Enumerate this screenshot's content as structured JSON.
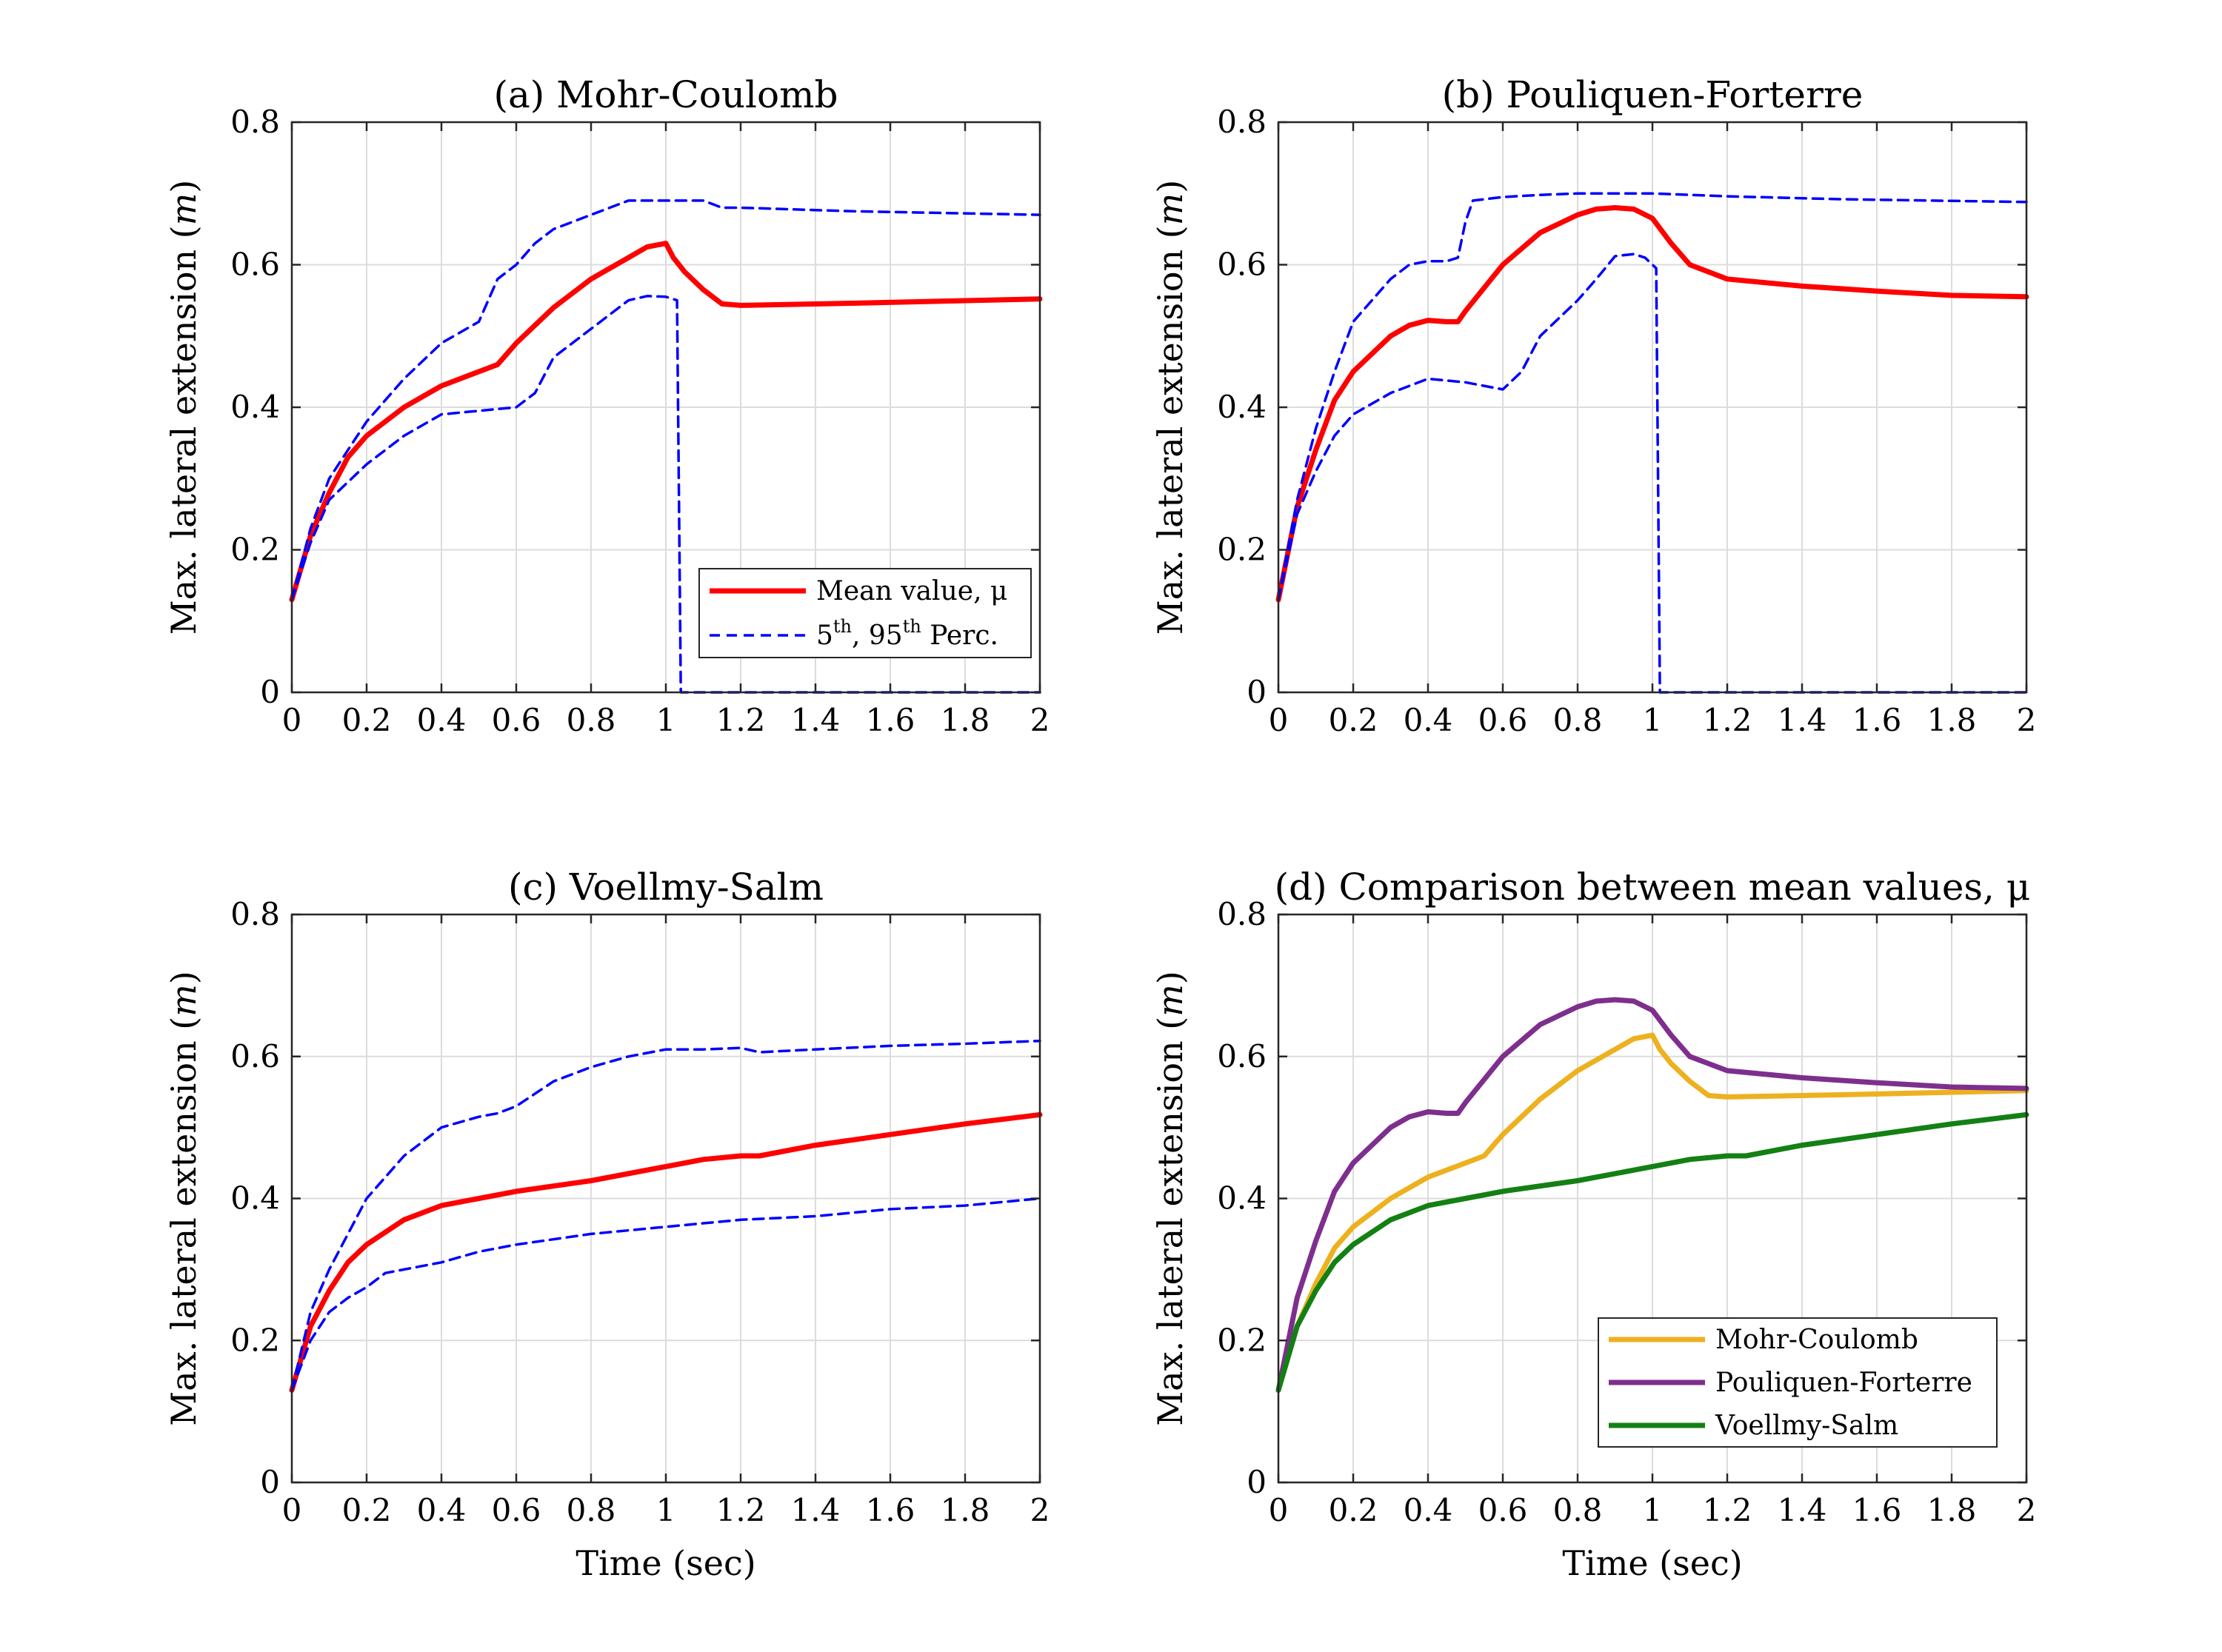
{
  "chart_data": [
    {
      "id": "a",
      "type": "line",
      "title": "(a) Mohr-Coulomb",
      "xlabel": "",
      "ylabel": "Max. lateral extension (m)",
      "xlim": [
        0,
        2
      ],
      "ylim": [
        0,
        0.8
      ],
      "xticks": [
        "0",
        "0.2",
        "0.4",
        "0.6",
        "0.8",
        "1",
        "1.2",
        "1.4",
        "1.6",
        "1.8",
        "2"
      ],
      "yticks": [
        "0",
        "0.2",
        "0.4",
        "0.6",
        "0.8"
      ],
      "grid": true,
      "legend": {
        "position": "bottom-right",
        "entries": [
          {
            "label": "Mean value, μ",
            "style": "solid",
            "color": "#ff0000"
          },
          {
            "label": "5th, 95th Perc.",
            "style": "dashed",
            "color": "#0000ff"
          }
        ]
      },
      "series": [
        {
          "role": "mean",
          "color": "#ff0000",
          "style": "solid",
          "x": [
            0,
            0.05,
            0.1,
            0.15,
            0.2,
            0.3,
            0.4,
            0.5,
            0.55,
            0.6,
            0.7,
            0.8,
            0.9,
            0.95,
            1.0,
            1.02,
            1.05,
            1.1,
            1.15,
            1.2,
            1.5,
            2.0
          ],
          "y": [
            0.13,
            0.22,
            0.28,
            0.33,
            0.36,
            0.4,
            0.43,
            0.45,
            0.46,
            0.49,
            0.54,
            0.58,
            0.61,
            0.625,
            0.63,
            0.61,
            0.59,
            0.565,
            0.545,
            0.543,
            0.546,
            0.552
          ]
        },
        {
          "role": "p95",
          "color": "#0000ff",
          "style": "dashed",
          "x": [
            0,
            0.05,
            0.1,
            0.2,
            0.3,
            0.4,
            0.5,
            0.55,
            0.6,
            0.65,
            0.7,
            0.8,
            0.9,
            1.0,
            1.1,
            1.15,
            1.2,
            1.5,
            2.0
          ],
          "y": [
            0.13,
            0.23,
            0.3,
            0.38,
            0.44,
            0.49,
            0.52,
            0.58,
            0.6,
            0.63,
            0.65,
            0.67,
            0.69,
            0.69,
            0.69,
            0.68,
            0.68,
            0.675,
            0.67
          ]
        },
        {
          "role": "p5",
          "color": "#0000ff",
          "style": "dashed",
          "x": [
            0,
            0.05,
            0.1,
            0.2,
            0.3,
            0.4,
            0.5,
            0.6,
            0.65,
            0.7,
            0.8,
            0.9,
            0.95,
            1.0,
            1.03,
            1.04,
            2.0
          ],
          "y": [
            0.13,
            0.21,
            0.27,
            0.32,
            0.36,
            0.39,
            0.395,
            0.4,
            0.42,
            0.47,
            0.51,
            0.55,
            0.556,
            0.555,
            0.55,
            0.0,
            0.0
          ]
        }
      ]
    },
    {
      "id": "b",
      "type": "line",
      "title": "(b) Pouliquen-Forterre",
      "xlabel": "",
      "ylabel": "Max. lateral extension (m)",
      "xlim": [
        0,
        2
      ],
      "ylim": [
        0,
        0.8
      ],
      "xticks": [
        "0",
        "0.2",
        "0.4",
        "0.6",
        "0.8",
        "1",
        "1.2",
        "1.4",
        "1.6",
        "1.8",
        "2"
      ],
      "yticks": [
        "0",
        "0.2",
        "0.4",
        "0.6",
        "0.8"
      ],
      "grid": true,
      "series": [
        {
          "role": "mean",
          "color": "#ff0000",
          "style": "solid",
          "x": [
            0,
            0.05,
            0.1,
            0.15,
            0.2,
            0.3,
            0.35,
            0.4,
            0.45,
            0.48,
            0.5,
            0.6,
            0.7,
            0.8,
            0.85,
            0.9,
            0.95,
            1.0,
            1.05,
            1.1,
            1.2,
            1.4,
            1.6,
            1.8,
            2.0
          ],
          "y": [
            0.13,
            0.26,
            0.34,
            0.41,
            0.45,
            0.5,
            0.515,
            0.522,
            0.52,
            0.52,
            0.535,
            0.6,
            0.645,
            0.67,
            0.678,
            0.68,
            0.678,
            0.665,
            0.63,
            0.6,
            0.58,
            0.57,
            0.563,
            0.557,
            0.555
          ]
        },
        {
          "role": "p95",
          "color": "#0000ff",
          "style": "dashed",
          "x": [
            0,
            0.05,
            0.1,
            0.15,
            0.2,
            0.3,
            0.35,
            0.4,
            0.45,
            0.48,
            0.5,
            0.52,
            0.6,
            0.7,
            0.8,
            0.9,
            1.0,
            1.2,
            1.5,
            2.0
          ],
          "y": [
            0.13,
            0.27,
            0.37,
            0.45,
            0.52,
            0.58,
            0.6,
            0.605,
            0.605,
            0.61,
            0.66,
            0.69,
            0.695,
            0.698,
            0.7,
            0.7,
            0.7,
            0.696,
            0.692,
            0.688
          ]
        },
        {
          "role": "p5",
          "color": "#0000ff",
          "style": "dashed",
          "x": [
            0,
            0.05,
            0.1,
            0.15,
            0.2,
            0.3,
            0.4,
            0.5,
            0.55,
            0.6,
            0.65,
            0.7,
            0.8,
            0.85,
            0.9,
            0.95,
            0.98,
            1.01,
            1.02,
            2.0
          ],
          "y": [
            0.13,
            0.25,
            0.31,
            0.36,
            0.39,
            0.42,
            0.44,
            0.435,
            0.43,
            0.425,
            0.45,
            0.5,
            0.55,
            0.58,
            0.612,
            0.615,
            0.61,
            0.595,
            0.0,
            0.0
          ]
        }
      ]
    },
    {
      "id": "c",
      "type": "line",
      "title": "(c) Voellmy-Salm",
      "xlabel": "Time (sec)",
      "ylabel": "Max. lateral extension (m)",
      "xlim": [
        0,
        2
      ],
      "ylim": [
        0,
        0.8
      ],
      "xticks": [
        "0",
        "0.2",
        "0.4",
        "0.6",
        "0.8",
        "1",
        "1.2",
        "1.4",
        "1.6",
        "1.8",
        "2"
      ],
      "yticks": [
        "0",
        "0.2",
        "0.4",
        "0.6",
        "0.8"
      ],
      "grid": true,
      "series": [
        {
          "role": "mean",
          "color": "#ff0000",
          "style": "solid",
          "x": [
            0,
            0.05,
            0.1,
            0.15,
            0.2,
            0.3,
            0.4,
            0.5,
            0.6,
            0.8,
            1.0,
            1.1,
            1.2,
            1.25,
            1.4,
            1.6,
            1.8,
            2.0
          ],
          "y": [
            0.13,
            0.22,
            0.27,
            0.31,
            0.335,
            0.37,
            0.39,
            0.4,
            0.41,
            0.425,
            0.445,
            0.455,
            0.46,
            0.46,
            0.475,
            0.49,
            0.505,
            0.518
          ]
        },
        {
          "role": "p95",
          "color": "#0000ff",
          "style": "dashed",
          "x": [
            0,
            0.05,
            0.1,
            0.15,
            0.2,
            0.3,
            0.4,
            0.5,
            0.55,
            0.6,
            0.7,
            0.8,
            0.9,
            1.0,
            1.1,
            1.2,
            1.25,
            1.4,
            1.6,
            1.8,
            2.0
          ],
          "y": [
            0.13,
            0.24,
            0.3,
            0.35,
            0.4,
            0.46,
            0.5,
            0.515,
            0.52,
            0.53,
            0.565,
            0.585,
            0.6,
            0.61,
            0.61,
            0.612,
            0.606,
            0.61,
            0.615,
            0.618,
            0.622
          ]
        },
        {
          "role": "p5",
          "color": "#0000ff",
          "style": "dashed",
          "x": [
            0,
            0.05,
            0.1,
            0.15,
            0.2,
            0.25,
            0.3,
            0.4,
            0.5,
            0.6,
            0.8,
            1.0,
            1.2,
            1.4,
            1.5,
            1.6,
            1.8,
            2.0
          ],
          "y": [
            0.13,
            0.2,
            0.24,
            0.26,
            0.275,
            0.295,
            0.3,
            0.31,
            0.325,
            0.335,
            0.35,
            0.36,
            0.37,
            0.375,
            0.38,
            0.385,
            0.39,
            0.4
          ]
        }
      ]
    },
    {
      "id": "d",
      "type": "line",
      "title": "(d) Comparison between mean values, μ",
      "xlabel": "Time (sec)",
      "ylabel": "Max. lateral extension (m)",
      "xlim": [
        0,
        2
      ],
      "ylim": [
        0,
        0.8
      ],
      "xticks": [
        "0",
        "0.2",
        "0.4",
        "0.6",
        "0.8",
        "1",
        "1.2",
        "1.4",
        "1.6",
        "1.8",
        "2"
      ],
      "yticks": [
        "0",
        "0.2",
        "0.4",
        "0.6",
        "0.8"
      ],
      "grid": true,
      "legend": {
        "position": "bottom-right",
        "entries": [
          {
            "label": "Mohr-Coulomb",
            "style": "solid",
            "color": "#edb120"
          },
          {
            "label": "Pouliquen-Forterre",
            "style": "solid",
            "color": "#7e2f8e"
          },
          {
            "label": "Voellmy-Salm",
            "style": "solid",
            "color": "#138013"
          }
        ]
      },
      "series": [
        {
          "name": "Mohr-Coulomb",
          "color": "#edb120",
          "style": "solid",
          "x": [
            0,
            0.05,
            0.1,
            0.15,
            0.2,
            0.3,
            0.4,
            0.5,
            0.55,
            0.6,
            0.7,
            0.8,
            0.9,
            0.95,
            1.0,
            1.02,
            1.05,
            1.1,
            1.15,
            1.2,
            1.5,
            2.0
          ],
          "y": [
            0.13,
            0.22,
            0.28,
            0.33,
            0.36,
            0.4,
            0.43,
            0.45,
            0.46,
            0.49,
            0.54,
            0.58,
            0.61,
            0.625,
            0.63,
            0.61,
            0.59,
            0.565,
            0.545,
            0.543,
            0.546,
            0.552
          ]
        },
        {
          "name": "Pouliquen-Forterre",
          "color": "#7e2f8e",
          "style": "solid",
          "x": [
            0,
            0.05,
            0.1,
            0.15,
            0.2,
            0.3,
            0.35,
            0.4,
            0.45,
            0.48,
            0.5,
            0.6,
            0.7,
            0.8,
            0.85,
            0.9,
            0.95,
            1.0,
            1.05,
            1.1,
            1.2,
            1.4,
            1.6,
            1.8,
            2.0
          ],
          "y": [
            0.13,
            0.26,
            0.34,
            0.41,
            0.45,
            0.5,
            0.515,
            0.522,
            0.52,
            0.52,
            0.535,
            0.6,
            0.645,
            0.67,
            0.678,
            0.68,
            0.678,
            0.665,
            0.63,
            0.6,
            0.58,
            0.57,
            0.563,
            0.557,
            0.555
          ]
        },
        {
          "name": "Voellmy-Salm",
          "color": "#138013",
          "style": "solid",
          "x": [
            0,
            0.05,
            0.1,
            0.15,
            0.2,
            0.3,
            0.4,
            0.5,
            0.6,
            0.8,
            1.0,
            1.1,
            1.2,
            1.25,
            1.4,
            1.6,
            1.8,
            2.0
          ],
          "y": [
            0.13,
            0.22,
            0.27,
            0.31,
            0.335,
            0.37,
            0.39,
            0.4,
            0.41,
            0.425,
            0.445,
            0.455,
            0.46,
            0.46,
            0.475,
            0.49,
            0.505,
            0.518
          ]
        }
      ]
    }
  ]
}
